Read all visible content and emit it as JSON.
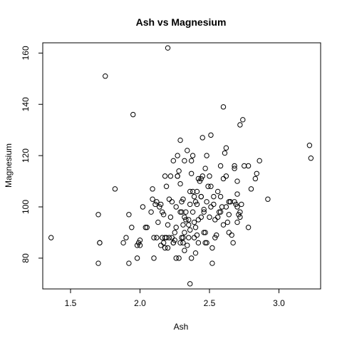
{
  "chart_data": {
    "type": "scatter",
    "title": "Ash vs Magnesium",
    "xlabel": "Ash",
    "ylabel": "Magnesium",
    "xlim": [
      1.3,
      3.3
    ],
    "ylim": [
      68,
      164
    ],
    "xticks": [
      1.5,
      2.0,
      2.5,
      3.0
    ],
    "xtick_labels": [
      "1.5",
      "2.0",
      "2.5",
      "3.0"
    ],
    "yticks": [
      80,
      100,
      120,
      140,
      160
    ],
    "yticks_labels": [
      "80",
      "100",
      "120",
      "140",
      "160"
    ],
    "grid": false,
    "legend": "none",
    "marker": "open-circle",
    "point_color": "#000000",
    "points": [
      [
        1.36,
        88
      ],
      [
        1.7,
        97
      ],
      [
        1.7,
        78
      ],
      [
        1.71,
        86
      ],
      [
        1.75,
        151
      ],
      [
        1.82,
        107
      ],
      [
        1.88,
        86
      ],
      [
        1.9,
        88
      ],
      [
        1.92,
        97
      ],
      [
        1.92,
        78
      ],
      [
        1.94,
        92
      ],
      [
        1.95,
        136
      ],
      [
        1.98,
        85
      ],
      [
        1.98,
        80
      ],
      [
        1.99,
        86
      ],
      [
        2.0,
        87
      ],
      [
        2.0,
        85
      ],
      [
        2.02,
        100
      ],
      [
        2.04,
        92
      ],
      [
        2.08,
        98
      ],
      [
        2.09,
        107
      ],
      [
        2.09,
        103
      ],
      [
        2.1,
        88
      ],
      [
        2.1,
        80
      ],
      [
        2.11,
        101
      ],
      [
        2.12,
        102
      ],
      [
        2.13,
        94
      ],
      [
        2.14,
        100
      ],
      [
        2.15,
        85
      ],
      [
        2.16,
        88
      ],
      [
        2.17,
        86
      ],
      [
        2.17,
        97
      ],
      [
        2.18,
        88
      ],
      [
        2.18,
        112
      ],
      [
        2.19,
        108
      ],
      [
        2.2,
        162
      ],
      [
        2.2,
        93
      ],
      [
        2.21,
        103
      ],
      [
        2.22,
        96
      ],
      [
        2.22,
        112
      ],
      [
        2.23,
        88
      ],
      [
        2.24,
        86
      ],
      [
        2.24,
        118
      ],
      [
        2.25,
        90
      ],
      [
        2.25,
        87
      ],
      [
        2.26,
        100
      ],
      [
        2.27,
        120
      ],
      [
        2.27,
        112
      ],
      [
        2.28,
        114
      ],
      [
        2.29,
        98
      ],
      [
        2.29,
        126
      ],
      [
        2.3,
        98
      ],
      [
        2.3,
        88
      ],
      [
        2.3,
        102
      ],
      [
        2.31,
        88
      ],
      [
        2.31,
        103
      ],
      [
        2.32,
        118
      ],
      [
        2.32,
        90
      ],
      [
        2.33,
        95
      ],
      [
        2.34,
        122
      ],
      [
        2.35,
        95
      ],
      [
        2.35,
        88
      ],
      [
        2.36,
        101
      ],
      [
        2.36,
        106
      ],
      [
        2.37,
        113
      ],
      [
        2.38,
        106
      ],
      [
        2.38,
        120
      ],
      [
        2.39,
        104
      ],
      [
        2.39,
        88
      ],
      [
        2.4,
        102
      ],
      [
        2.4,
        92
      ],
      [
        2.41,
        101
      ],
      [
        2.41,
        89
      ],
      [
        2.42,
        95
      ],
      [
        2.42,
        86
      ],
      [
        2.43,
        110
      ],
      [
        2.44,
        104
      ],
      [
        2.44,
        111
      ],
      [
        2.45,
        127
      ],
      [
        2.45,
        112
      ],
      [
        2.46,
        98
      ],
      [
        2.47,
        115
      ],
      [
        2.47,
        90
      ],
      [
        2.48,
        86
      ],
      [
        2.48,
        102
      ],
      [
        2.49,
        108
      ],
      [
        2.5,
        112
      ],
      [
        2.5,
        96
      ],
      [
        2.51,
        108
      ],
      [
        2.51,
        128
      ],
      [
        2.52,
        84
      ],
      [
        2.53,
        104
      ],
      [
        2.54,
        95
      ],
      [
        2.55,
        89
      ],
      [
        2.56,
        106
      ],
      [
        2.57,
        98
      ],
      [
        2.58,
        116
      ],
      [
        2.59,
        100
      ],
      [
        2.6,
        139
      ],
      [
        2.6,
        111
      ],
      [
        2.61,
        121
      ],
      [
        2.62,
        123
      ],
      [
        2.63,
        94
      ],
      [
        2.64,
        97
      ],
      [
        2.64,
        90
      ],
      [
        2.65,
        102
      ],
      [
        2.67,
        86
      ],
      [
        2.68,
        115
      ],
      [
        2.68,
        102
      ],
      [
        2.69,
        101
      ],
      [
        2.7,
        110
      ],
      [
        2.7,
        105
      ],
      [
        2.7,
        94
      ],
      [
        2.71,
        97
      ],
      [
        2.72,
        132
      ],
      [
        2.72,
        96
      ],
      [
        2.73,
        101
      ],
      [
        2.74,
        134
      ],
      [
        2.75,
        116
      ],
      [
        2.78,
        92
      ],
      [
        2.8,
        107
      ],
      [
        2.83,
        111
      ],
      [
        2.84,
        113
      ],
      [
        2.86,
        118
      ],
      [
        2.92,
        103
      ],
      [
        3.22,
        124
      ],
      [
        3.23,
        119
      ],
      [
        1.71,
        86
      ],
      [
        2.05,
        92
      ],
      [
        2.28,
        80
      ],
      [
        2.32,
        83
      ],
      [
        2.36,
        70
      ],
      [
        2.26,
        80
      ],
      [
        2.4,
        82
      ],
      [
        2.46,
        90
      ],
      [
        2.52,
        78
      ],
      [
        2.56,
        96
      ],
      [
        2.62,
        112
      ],
      [
        2.65,
        102
      ],
      [
        2.48,
        120
      ],
      [
        2.19,
        88
      ],
      [
        2.21,
        88
      ],
      [
        2.38,
        98
      ],
      [
        2.29,
        109
      ],
      [
        2.34,
        85
      ],
      [
        2.15,
        101
      ],
      [
        2.53,
        101
      ],
      [
        2.58,
        104
      ],
      [
        2.44,
        104
      ],
      [
        2.64,
        102
      ],
      [
        2.12,
        88
      ],
      [
        2.35,
        93
      ],
      [
        2.37,
        118
      ],
      [
        2.42,
        111
      ],
      [
        2.68,
        116
      ],
      [
        2.31,
        93
      ],
      [
        2.27,
        112
      ],
      [
        2.23,
        102
      ],
      [
        2.33,
        98
      ],
      [
        2.46,
        99
      ],
      [
        2.51,
        100
      ],
      [
        2.6,
        93
      ],
      [
        2.66,
        89
      ],
      [
        2.7,
        100
      ],
      [
        2.36,
        91
      ],
      [
        2.24,
        86
      ],
      [
        2.2,
        84
      ],
      [
        2.18,
        84
      ],
      [
        2.39,
        94
      ],
      [
        2.44,
        96
      ],
      [
        2.58,
        98
      ],
      [
        2.62,
        100
      ],
      [
        2.72,
        98
      ],
      [
        2.78,
        116
      ],
      [
        2.26,
        92
      ],
      [
        2.31,
        86
      ],
      [
        2.37,
        80
      ],
      [
        2.47,
        86
      ],
      [
        2.54,
        88
      ],
      [
        2.29,
        86
      ],
      [
        2.41,
        106
      ],
      [
        2.32,
        96
      ],
      [
        2.16,
        98
      ]
    ]
  }
}
